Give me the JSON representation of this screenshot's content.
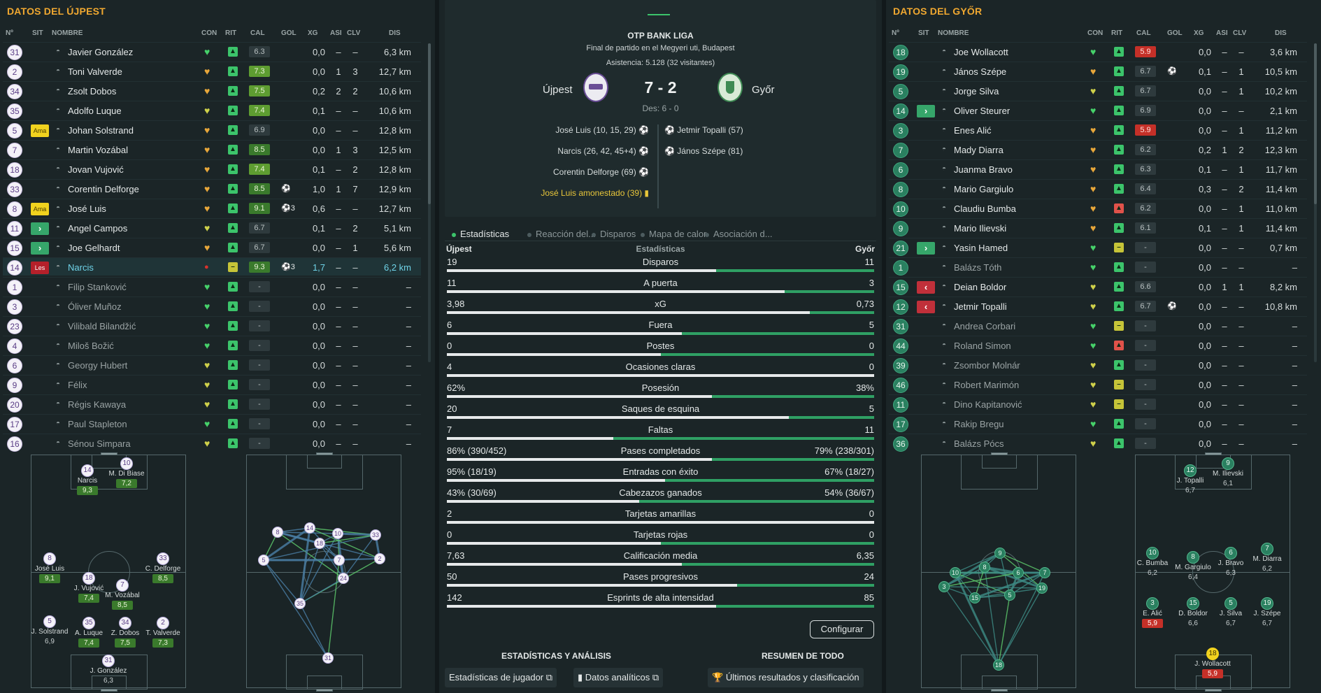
{
  "left": {
    "title": "DATOS DEL ÚJPEST",
    "columns": [
      "Nº",
      "SIT",
      "NOMBRE",
      "CON",
      "RIT",
      "CAL",
      "GOL",
      "XG",
      "ASI",
      "CLV",
      "DIS"
    ],
    "players": [
      {
        "num": "31",
        "sit": "",
        "name": "Javier González",
        "con": "g",
        "rit": "g",
        "cal": "6.3",
        "calc": "no",
        "gol": "",
        "xg": "0,0",
        "asi": "–",
        "clv": "–",
        "dis": "6,3 km"
      },
      {
        "num": "2",
        "sit": "",
        "name": "Toni Valverde",
        "con": "o",
        "rit": "g",
        "cal": "7.3",
        "calc": "lg",
        "gol": "",
        "xg": "0,0",
        "asi": "1",
        "clv": "3",
        "dis": "12,7 km"
      },
      {
        "num": "34",
        "sit": "",
        "name": "Zsolt Dobos",
        "con": "o",
        "rit": "g",
        "cal": "7.5",
        "calc": "lg",
        "gol": "",
        "xg": "0,2",
        "asi": "2",
        "clv": "2",
        "dis": "10,6 km"
      },
      {
        "num": "35",
        "sit": "",
        "name": "Adolfo Luque",
        "con": "y",
        "rit": "g",
        "cal": "7.4",
        "calc": "lg",
        "gol": "",
        "xg": "0,1",
        "asi": "–",
        "clv": "–",
        "dis": "10,6 km"
      },
      {
        "num": "5",
        "sit": "Ama",
        "name": "Johan Solstrand",
        "con": "o",
        "rit": "g",
        "cal": "6.9",
        "calc": "no",
        "gol": "",
        "xg": "0,0",
        "asi": "–",
        "clv": "–",
        "dis": "12,8 km"
      },
      {
        "num": "7",
        "sit": "",
        "name": "Martin Vozábal",
        "con": "o",
        "rit": "g",
        "cal": "8.5",
        "calc": "g",
        "gol": "",
        "xg": "0,0",
        "asi": "1",
        "clv": "3",
        "dis": "12,5 km"
      },
      {
        "num": "18",
        "sit": "",
        "name": "Jovan Vujović",
        "con": "o",
        "rit": "g",
        "cal": "7.4",
        "calc": "lg",
        "gol": "",
        "xg": "0,1",
        "asi": "–",
        "clv": "2",
        "dis": "12,8 km"
      },
      {
        "num": "33",
        "sit": "",
        "name": "Corentin Delforge",
        "con": "o",
        "rit": "g",
        "cal": "8.5",
        "calc": "g",
        "gol": "⚽",
        "xg": "1,0",
        "asi": "1",
        "clv": "7",
        "dis": "12,9 km"
      },
      {
        "num": "8",
        "sit": "Ama",
        "name": "José Luis",
        "con": "o",
        "rit": "g",
        "cal": "9.1",
        "calc": "g",
        "gol": "⚽3",
        "xg": "0,6",
        "asi": "–",
        "clv": "–",
        "dis": "12,7 km"
      },
      {
        "num": "11",
        "sit": "in",
        "name": "Angel Campos",
        "con": "y",
        "rit": "g",
        "cal": "6.7",
        "calc": "no",
        "gol": "",
        "xg": "0,1",
        "asi": "–",
        "clv": "2",
        "dis": "5,1 km"
      },
      {
        "num": "15",
        "sit": "in",
        "name": "Joe Gelhardt",
        "con": "o",
        "rit": "g",
        "cal": "6.7",
        "calc": "no",
        "gol": "",
        "xg": "0,0",
        "asi": "–",
        "clv": "1",
        "dis": "5,6 km"
      },
      {
        "num": "14",
        "sit": "Les",
        "name": "Narcis",
        "con": "r",
        "rit": "yel",
        "cal": "9.3",
        "calc": "g",
        "gol": "⚽3",
        "xg": "1,7",
        "asi": "–",
        "clv": "–",
        "dis": "6,2 km",
        "hl": true
      },
      {
        "num": "1",
        "sit": "",
        "name": "Filip Stanković",
        "con": "g",
        "rit": "g",
        "cal": "-",
        "calc": "no",
        "gol": "",
        "xg": "0,0",
        "asi": "–",
        "clv": "–",
        "dis": "–",
        "dim": true
      },
      {
        "num": "3",
        "sit": "",
        "name": "Óliver Muñoz",
        "con": "g",
        "rit": "g",
        "cal": "-",
        "calc": "no",
        "gol": "",
        "xg": "0,0",
        "asi": "–",
        "clv": "–",
        "dis": "–",
        "dim": true
      },
      {
        "num": "23",
        "sit": "",
        "name": "Vilibald Bilandžić",
        "con": "g",
        "rit": "g",
        "cal": "-",
        "calc": "no",
        "gol": "",
        "xg": "0,0",
        "asi": "–",
        "clv": "–",
        "dis": "–",
        "dim": true
      },
      {
        "num": "4",
        "sit": "",
        "name": "Miloš Božić",
        "con": "g",
        "rit": "g",
        "cal": "-",
        "calc": "no",
        "gol": "",
        "xg": "0,0",
        "asi": "–",
        "clv": "–",
        "dis": "–",
        "dim": true
      },
      {
        "num": "6",
        "sit": "",
        "name": "Georgy Hubert",
        "con": "y",
        "rit": "g",
        "cal": "-",
        "calc": "no",
        "gol": "",
        "xg": "0,0",
        "asi": "–",
        "clv": "–",
        "dis": "–",
        "dim": true
      },
      {
        "num": "9",
        "sit": "",
        "name": "Félix",
        "con": "y",
        "rit": "g",
        "cal": "-",
        "calc": "no",
        "gol": "",
        "xg": "0,0",
        "asi": "–",
        "clv": "–",
        "dis": "–",
        "dim": true
      },
      {
        "num": "20",
        "sit": "",
        "name": "Régis Kawaya",
        "con": "y",
        "rit": "g",
        "cal": "-",
        "calc": "no",
        "gol": "",
        "xg": "0,0",
        "asi": "–",
        "clv": "–",
        "dis": "–",
        "dim": true
      },
      {
        "num": "17",
        "sit": "",
        "name": "Paul Stapleton",
        "con": "g",
        "rit": "g",
        "cal": "-",
        "calc": "no",
        "gol": "",
        "xg": "0,0",
        "asi": "–",
        "clv": "–",
        "dis": "–",
        "dim": true
      },
      {
        "num": "16",
        "sit": "",
        "name": "Sénou Simpara",
        "con": "y",
        "rit": "g",
        "cal": "-",
        "calc": "no",
        "gol": "",
        "xg": "0,0",
        "asi": "–",
        "clv": "–",
        "dis": "–",
        "dim": true
      }
    ],
    "formation": [
      {
        "num": "14",
        "name": "Narcis",
        "rate": "9,3",
        "cls": "g"
      },
      {
        "num": "10",
        "name": "M. Di Biase",
        "rate": "7,2",
        "cls": "g"
      },
      {
        "num": "8",
        "name": "José Luis",
        "rate": "9,1",
        "cls": "g"
      },
      {
        "num": "33",
        "name": "C. Delforge",
        "rate": "8,5",
        "cls": "g"
      },
      {
        "num": "18",
        "name": "J. Vujović",
        "rate": "7,4",
        "cls": "g"
      },
      {
        "num": "7",
        "name": "M. Vozábal",
        "rate": "8,5",
        "cls": "g"
      },
      {
        "num": "5",
        "name": "J. Solstrand",
        "rate": "6,9",
        "cls": "n"
      },
      {
        "num": "35",
        "name": "A. Luque",
        "rate": "7,4",
        "cls": "g"
      },
      {
        "num": "34",
        "name": "Z. Dobos",
        "rate": "7,5",
        "cls": "g"
      },
      {
        "num": "2",
        "name": "T. Valverde",
        "rate": "7,3",
        "cls": "g"
      },
      {
        "num": "31",
        "name": "J. González",
        "rate": "6,3",
        "cls": "n"
      }
    ],
    "passmap": [
      "8",
      "14",
      "10",
      "33",
      "5",
      "18",
      "7",
      "2",
      "24",
      "35",
      "31"
    ]
  },
  "right": {
    "title": "DATOS DEL GYŐR",
    "columns": [
      "Nº",
      "SIT",
      "NOMBRE",
      "CON",
      "RIT",
      "CAL",
      "GOL",
      "XG",
      "ASI",
      "CLV",
      "DIS"
    ],
    "players": [
      {
        "num": "18",
        "sit": "",
        "name": "Joe Wollacott",
        "con": "g",
        "rit": "g",
        "cal": "5.9",
        "calc": "r",
        "gol": "",
        "xg": "0,0",
        "asi": "–",
        "clv": "–",
        "dis": "3,6 km"
      },
      {
        "num": "19",
        "sit": "",
        "name": "János Szépe",
        "con": "o",
        "rit": "g",
        "cal": "6.7",
        "calc": "no",
        "gol": "⚽",
        "xg": "0,1",
        "asi": "–",
        "clv": "1",
        "dis": "10,5 km"
      },
      {
        "num": "5",
        "sit": "",
        "name": "Jorge Silva",
        "con": "y",
        "rit": "g",
        "cal": "6.7",
        "calc": "no",
        "gol": "",
        "xg": "0,0",
        "asi": "–",
        "clv": "1",
        "dis": "10,2 km"
      },
      {
        "num": "14",
        "sit": "in",
        "name": "Oliver Steurer",
        "con": "g",
        "rit": "g",
        "cal": "6.9",
        "calc": "no",
        "gol": "",
        "xg": "0,0",
        "asi": "–",
        "clv": "–",
        "dis": "2,1 km"
      },
      {
        "num": "3",
        "sit": "",
        "name": "Enes Alić",
        "con": "o",
        "rit": "g",
        "cal": "5.9",
        "calc": "r",
        "gol": "",
        "xg": "0,0",
        "asi": "–",
        "clv": "1",
        "dis": "11,2 km"
      },
      {
        "num": "7",
        "sit": "",
        "name": "Mady Diarra",
        "con": "o",
        "rit": "g",
        "cal": "6.2",
        "calc": "no",
        "gol": "",
        "xg": "0,2",
        "asi": "1",
        "clv": "2",
        "dis": "12,3 km"
      },
      {
        "num": "6",
        "sit": "",
        "name": "Juanma Bravo",
        "con": "o",
        "rit": "g",
        "cal": "6.3",
        "calc": "no",
        "gol": "",
        "xg": "0,1",
        "asi": "–",
        "clv": "1",
        "dis": "11,7 km"
      },
      {
        "num": "8",
        "sit": "",
        "name": "Mario Gargiulo",
        "con": "o",
        "rit": "g",
        "cal": "6.4",
        "calc": "no",
        "gol": "",
        "xg": "0,3",
        "asi": "–",
        "clv": "2",
        "dis": "11,4 km"
      },
      {
        "num": "10",
        "sit": "",
        "name": "Claudiu Bumba",
        "con": "o",
        "rit": "red",
        "cal": "6.2",
        "calc": "no",
        "gol": "",
        "xg": "0,0",
        "asi": "–",
        "clv": "1",
        "dis": "11,0 km"
      },
      {
        "num": "9",
        "sit": "",
        "name": "Mario Ilievski",
        "con": "o",
        "rit": "g",
        "cal": "6.1",
        "calc": "no",
        "gol": "",
        "xg": "0,1",
        "asi": "–",
        "clv": "1",
        "dis": "11,4 km"
      },
      {
        "num": "21",
        "sit": "in",
        "name": "Yasin Hamed",
        "con": "g",
        "rit": "yel",
        "cal": "-",
        "calc": "no",
        "gol": "",
        "xg": "0,0",
        "asi": "–",
        "clv": "–",
        "dis": "0,7 km"
      },
      {
        "num": "1",
        "sit": "",
        "name": "Balázs Tóth",
        "con": "g",
        "rit": "g",
        "cal": "-",
        "calc": "no",
        "gol": "",
        "xg": "0,0",
        "asi": "–",
        "clv": "–",
        "dis": "–",
        "dim": true
      },
      {
        "num": "15",
        "sit": "out",
        "name": "Deian Boldor",
        "con": "y",
        "rit": "g",
        "cal": "6.6",
        "calc": "no",
        "gol": "",
        "xg": "0,0",
        "asi": "1",
        "clv": "1",
        "dis": "8,2 km"
      },
      {
        "num": "12",
        "sit": "out",
        "name": "Jetmir Topalli",
        "con": "y",
        "rit": "g",
        "cal": "6.7",
        "calc": "no",
        "gol": "⚽",
        "xg": "0,0",
        "asi": "–",
        "clv": "–",
        "dis": "10,8 km"
      },
      {
        "num": "31",
        "sit": "",
        "name": "Andrea Corbari",
        "con": "g",
        "rit": "yel",
        "cal": "-",
        "calc": "no",
        "gol": "",
        "xg": "0,0",
        "asi": "–",
        "clv": "–",
        "dis": "–",
        "dim": true
      },
      {
        "num": "44",
        "sit": "",
        "name": "Roland Simon",
        "con": "g",
        "rit": "red",
        "cal": "-",
        "calc": "no",
        "gol": "",
        "xg": "0,0",
        "asi": "–",
        "clv": "–",
        "dis": "–",
        "dim": true
      },
      {
        "num": "39",
        "sit": "",
        "name": "Zsombor Molnár",
        "con": "y",
        "rit": "g",
        "cal": "-",
        "calc": "no",
        "gol": "",
        "xg": "0,0",
        "asi": "–",
        "clv": "–",
        "dis": "–",
        "dim": true
      },
      {
        "num": "46",
        "sit": "",
        "name": "Robert Marimón",
        "con": "y",
        "rit": "yel",
        "cal": "-",
        "calc": "no",
        "gol": "",
        "xg": "0,0",
        "asi": "–",
        "clv": "–",
        "dis": "–",
        "dim": true
      },
      {
        "num": "11",
        "sit": "",
        "name": "Dino Kapitanović",
        "con": "y",
        "rit": "yel",
        "cal": "-",
        "calc": "no",
        "gol": "",
        "xg": "0,0",
        "asi": "–",
        "clv": "–",
        "dis": "–",
        "dim": true
      },
      {
        "num": "17",
        "sit": "",
        "name": "Rakip Bregu",
        "con": "g",
        "rit": "g",
        "cal": "-",
        "calc": "no",
        "gol": "",
        "xg": "0,0",
        "asi": "–",
        "clv": "–",
        "dis": "–",
        "dim": true
      },
      {
        "num": "36",
        "sit": "",
        "name": "Balázs Pócs",
        "con": "y",
        "rit": "g",
        "cal": "-",
        "calc": "no",
        "gol": "",
        "xg": "0,0",
        "asi": "–",
        "clv": "–",
        "dis": "–",
        "dim": true
      }
    ],
    "formation": [
      {
        "num": "12",
        "name": "J. Topalli",
        "rate": "6,7",
        "cls": "n"
      },
      {
        "num": "9",
        "name": "M. Ilievski",
        "rate": "6,1",
        "cls": "n"
      },
      {
        "num": "10",
        "name": "C. Bumba",
        "rate": "6,2",
        "cls": "n"
      },
      {
        "num": "8",
        "name": "M. Gargiulo",
        "rate": "6,4",
        "cls": "n"
      },
      {
        "num": "6",
        "name": "J. Bravo",
        "rate": "6,3",
        "cls": "n"
      },
      {
        "num": "7",
        "name": "M. Diarra",
        "rate": "6,2",
        "cls": "n"
      },
      {
        "num": "3",
        "name": "E. Alić",
        "rate": "5,9",
        "cls": "r"
      },
      {
        "num": "15",
        "name": "D. Boldor",
        "rate": "6,6",
        "cls": "n"
      },
      {
        "num": "5",
        "name": "J. Silva",
        "rate": "6,7",
        "cls": "n"
      },
      {
        "num": "19",
        "name": "J. Szépe",
        "rate": "6,7",
        "cls": "n"
      },
      {
        "num": "18",
        "name": "J. Wollacott",
        "rate": "5,9",
        "cls": "r"
      }
    ],
    "passmap": [
      "9",
      "10",
      "8",
      "6",
      "7",
      "3",
      "15",
      "5",
      "19",
      "18"
    ]
  },
  "match": {
    "league": "OTP BANK LIGA",
    "subtitle": "Final de partido en el Megyeri uti, Budapest",
    "attendance": "Asistencia: 5.128 (32 visitantes)",
    "home": "Újpest",
    "away": "Győr",
    "score": "7 - 2",
    "aggregate": "Des: 6 - 0",
    "home_events": [
      "José Luis (10, 15, 29)",
      "Narcis (26, 42, 45+4)",
      "Corentin Delforge (69)"
    ],
    "home_yellow": "José Luis amonestado (39)",
    "away_events": [
      "Jetmir Topalli (57)",
      "János Szépe (81)"
    ]
  },
  "tabs": [
    "Estadísticas",
    "Reacción del...",
    "Disparos",
    "Mapa de calor",
    "Asociación d..."
  ],
  "stats_header": {
    "home": "Újpest",
    "title": "Estadísticas",
    "away": "Győr"
  },
  "stats": [
    {
      "label": "Disparos",
      "home": "19",
      "away": "11",
      "share": 0.63
    },
    {
      "label": "A puerta",
      "home": "11",
      "away": "3",
      "share": 0.79
    },
    {
      "label": "xG",
      "home": "3,98",
      "away": "0,73",
      "share": 0.85
    },
    {
      "label": "Fuera",
      "home": "6",
      "away": "5",
      "share": 0.55
    },
    {
      "label": "Postes",
      "home": "0",
      "away": "0",
      "share": 0.5
    },
    {
      "label": "Ocasiones claras",
      "home": "4",
      "away": "0",
      "share": 1.0
    },
    {
      "label": "Posesión",
      "home": "62%",
      "away": "38%",
      "share": 0.62
    },
    {
      "label": "Saques de esquina",
      "home": "20",
      "away": "5",
      "share": 0.8
    },
    {
      "label": "Faltas",
      "home": "7",
      "away": "11",
      "share": 0.39
    },
    {
      "label": "Pases completados",
      "home": "86% (390/452)",
      "away": "79% (238/301)",
      "share": 0.62
    },
    {
      "label": "Entradas con éxito",
      "home": "95% (18/19)",
      "away": "67% (18/27)",
      "share": 0.51
    },
    {
      "label": "Cabezazos ganados",
      "home": "43% (30/69)",
      "away": "54% (36/67)",
      "share": 0.45
    },
    {
      "label": "Tarjetas amarillas",
      "home": "2",
      "away": "0",
      "share": 1.0
    },
    {
      "label": "Tarjetas rojas",
      "home": "0",
      "away": "0",
      "share": 0.5
    },
    {
      "label": "Calificación media",
      "home": "7,63",
      "away": "6,35",
      "share": 0.55
    },
    {
      "label": "Pases progresivos",
      "home": "50",
      "away": "24",
      "share": 0.68
    },
    {
      "label": "Esprints de alta intensidad",
      "home": "142",
      "away": "85",
      "share": 0.63
    }
  ],
  "buttons": {
    "configure": "Configurar",
    "section1": "ESTADÍSTICAS Y ANÁLISIS",
    "section2": "RESUMEN DE TODO",
    "player_stats": "Estadísticas de jugador",
    "analytics": "Datos analíticos",
    "results": "Últimos resultados y clasificación"
  },
  "colors": {
    "home_accent": "#5a3d86",
    "away_accent": "#2a8060",
    "title": "#f0a830",
    "stat_bar": "#2fa064"
  }
}
